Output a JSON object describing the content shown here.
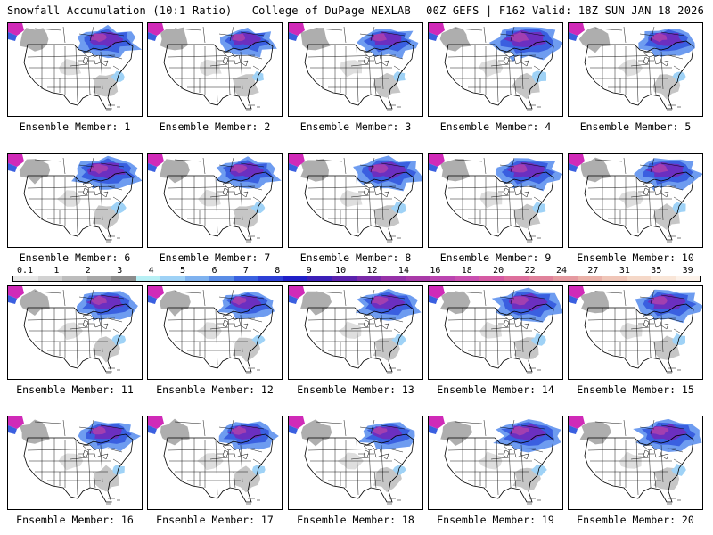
{
  "header": {
    "left_title": "Snowfall Accumulation (10:1 Ratio) | College of DuPage NEXLAB",
    "right_title": "00Z GEFS | F162 Valid: 18Z SUN JAN 18 2026"
  },
  "members": [
    {
      "label": "Ensemble Member: 1",
      "intensity": 0.75
    },
    {
      "label": "Ensemble Member: 2",
      "intensity": 0.65
    },
    {
      "label": "Ensemble Member: 3",
      "intensity": 0.7
    },
    {
      "label": "Ensemble Member: 4",
      "intensity": 0.9
    },
    {
      "label": "Ensemble Member: 5",
      "intensity": 0.7
    },
    {
      "label": "Ensemble Member: 6",
      "intensity": 0.85
    },
    {
      "label": "Ensemble Member: 7",
      "intensity": 0.75
    },
    {
      "label": "Ensemble Member: 8",
      "intensity": 0.85
    },
    {
      "label": "Ensemble Member: 9",
      "intensity": 0.8
    },
    {
      "label": "Ensemble Member: 10",
      "intensity": 0.8
    },
    {
      "label": "Ensemble Member: 11",
      "intensity": 0.75
    },
    {
      "label": "Ensemble Member: 12",
      "intensity": 0.65
    },
    {
      "label": "Ensemble Member: 13",
      "intensity": 0.75
    },
    {
      "label": "Ensemble Member: 14",
      "intensity": 0.85
    },
    {
      "label": "Ensemble Member: 15",
      "intensity": 0.8
    },
    {
      "label": "Ensemble Member: 16",
      "intensity": 0.7
    },
    {
      "label": "Ensemble Member: 17",
      "intensity": 0.7
    },
    {
      "label": "Ensemble Member: 18",
      "intensity": 0.65
    },
    {
      "label": "Ensemble Member: 19",
      "intensity": 0.8
    },
    {
      "label": "Ensemble Member: 20",
      "intensity": 0.8
    }
  ],
  "colorbar": {
    "ticks": [
      "0.1",
      "1",
      "2",
      "3",
      "4",
      "5",
      "6",
      "7",
      "8",
      "9",
      "10",
      "12",
      "14",
      "16",
      "18",
      "20",
      "22",
      "24",
      "27",
      "31",
      "35",
      "39"
    ],
    "colors": [
      "#e6e6e6",
      "#d2d2d2",
      "#bdbdbd",
      "#a8a8a8",
      "#8c8c8c",
      "#b8f0f5",
      "#9fd2f6",
      "#7fb2ef",
      "#5a8de6",
      "#3a62e0",
      "#2d3fd6",
      "#1f1fc8",
      "#3b1fb8",
      "#5b22ad",
      "#7a2aa8",
      "#9632a8",
      "#a93aa8",
      "#bb45b0",
      "#c950b0",
      "#d55aa3",
      "#dd6f9c",
      "#e0829b",
      "#e59aa0",
      "#eab2a9",
      "#f0c6b8",
      "#f5d8c8",
      "#f9e6d8",
      "#fcf2ea"
    ]
  },
  "legend_meta": {
    "units": "inches",
    "scale_type": "stepped"
  }
}
